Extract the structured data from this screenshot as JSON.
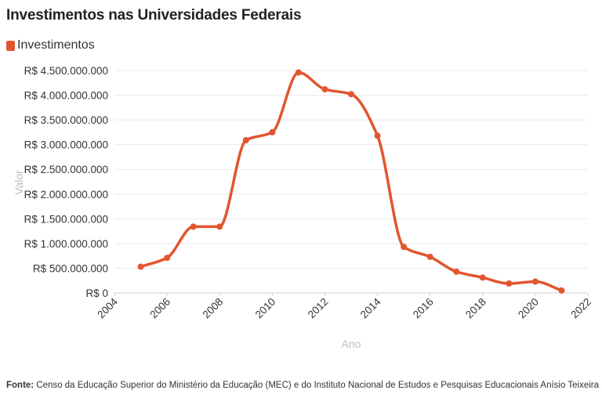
{
  "chart_data": {
    "type": "line",
    "title": "Investimentos nas Universidades Federais",
    "xlabel": "Ano",
    "ylabel": "Valor",
    "legend_position": "top-left",
    "grid": true,
    "color": "#e2552e",
    "xlim": [
      2004,
      2022
    ],
    "ylim": [
      0,
      4500000000
    ],
    "x_ticks": [
      "2004",
      "2006",
      "2008",
      "2010",
      "2012",
      "2014",
      "2016",
      "2018",
      "2020",
      "2022"
    ],
    "y_ticks": [
      "R$ 0",
      "R$ 500.000.000",
      "R$ 1.000.000.000",
      "R$ 1.500.000.000",
      "R$ 2.000.000.000",
      "R$ 2.500.000.000",
      "R$ 3.000.000.000",
      "R$ 3.500.000.000",
      "R$ 4.000.000.000",
      "R$ 4.500.000.000"
    ],
    "series": [
      {
        "name": "Investimentos",
        "x": [
          2005,
          2006,
          2007,
          2008,
          2009,
          2010,
          2011,
          2012,
          2013,
          2014,
          2015,
          2016,
          2017,
          2018,
          2019,
          2020,
          2021
        ],
        "y": [
          530000000,
          710000000,
          1340000000,
          1340000000,
          3090000000,
          3250000000,
          4460000000,
          4120000000,
          4020000000,
          3180000000,
          930000000,
          730000000,
          430000000,
          310000000,
          190000000,
          230000000,
          50000000
        ]
      }
    ]
  },
  "source": {
    "label": "Fonte:",
    "text": " Censo da Educação Superior do Ministério da Educação (MEC) e do Instituto Nacional de Estudos e Pesquisas Educacionais Anísio Teixeira (INEP)"
  }
}
